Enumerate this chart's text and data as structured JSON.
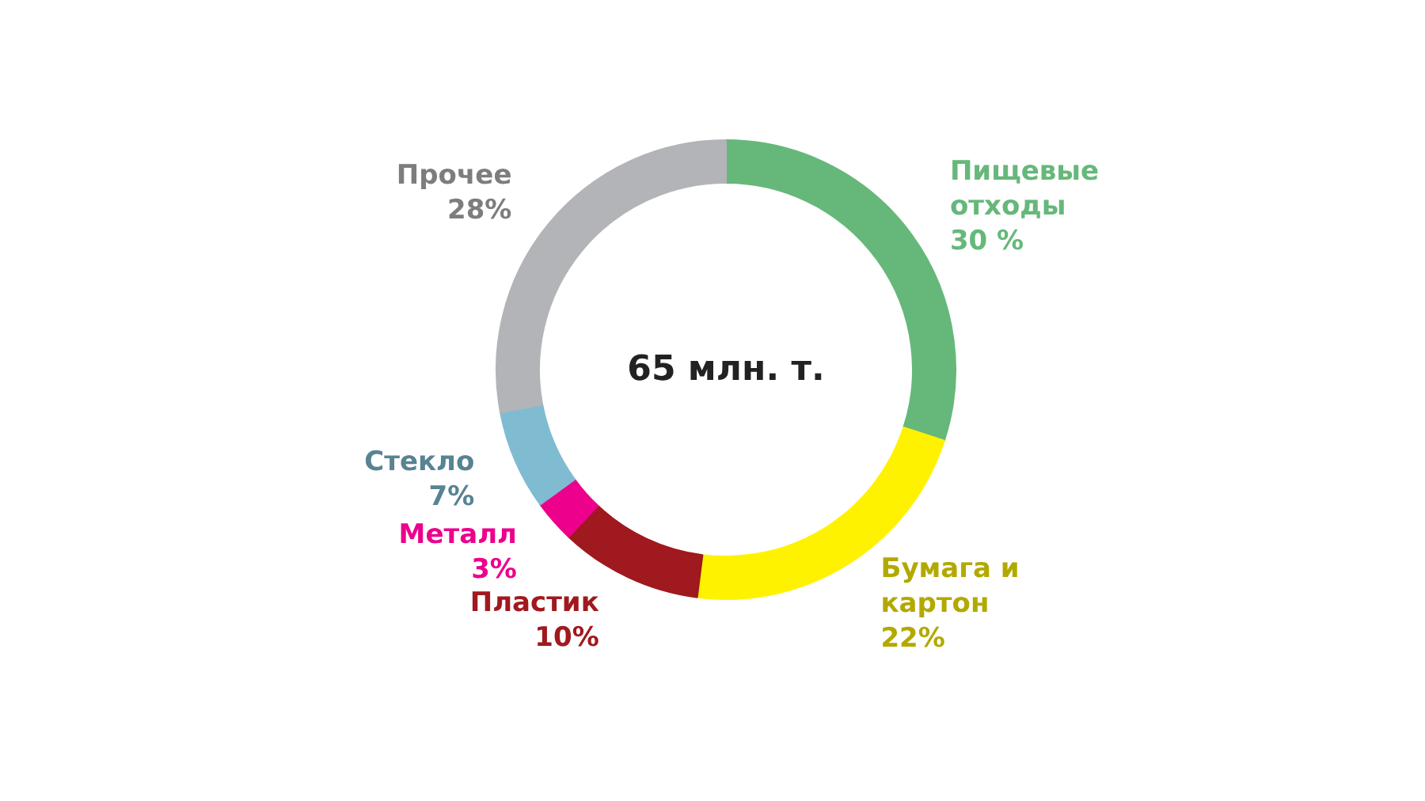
{
  "chart_data": {
    "type": "donut",
    "categories": [
      "Пищевые\nотходы",
      "Бумага и\nкартон",
      "Пластик",
      "Металл",
      "Стекло",
      "Прочее"
    ],
    "values": [
      30,
      22,
      10,
      3,
      7,
      28
    ],
    "colors": [
      "#66b87a",
      "#fff200",
      "#a0191e",
      "#ec008c",
      "#7fbcd2",
      "#b3b4b8"
    ],
    "value_labels": [
      "30 %",
      "22%",
      "10%",
      "3%",
      "7%",
      "28%"
    ],
    "annotations": [
      "65 млн. т."
    ]
  }
}
